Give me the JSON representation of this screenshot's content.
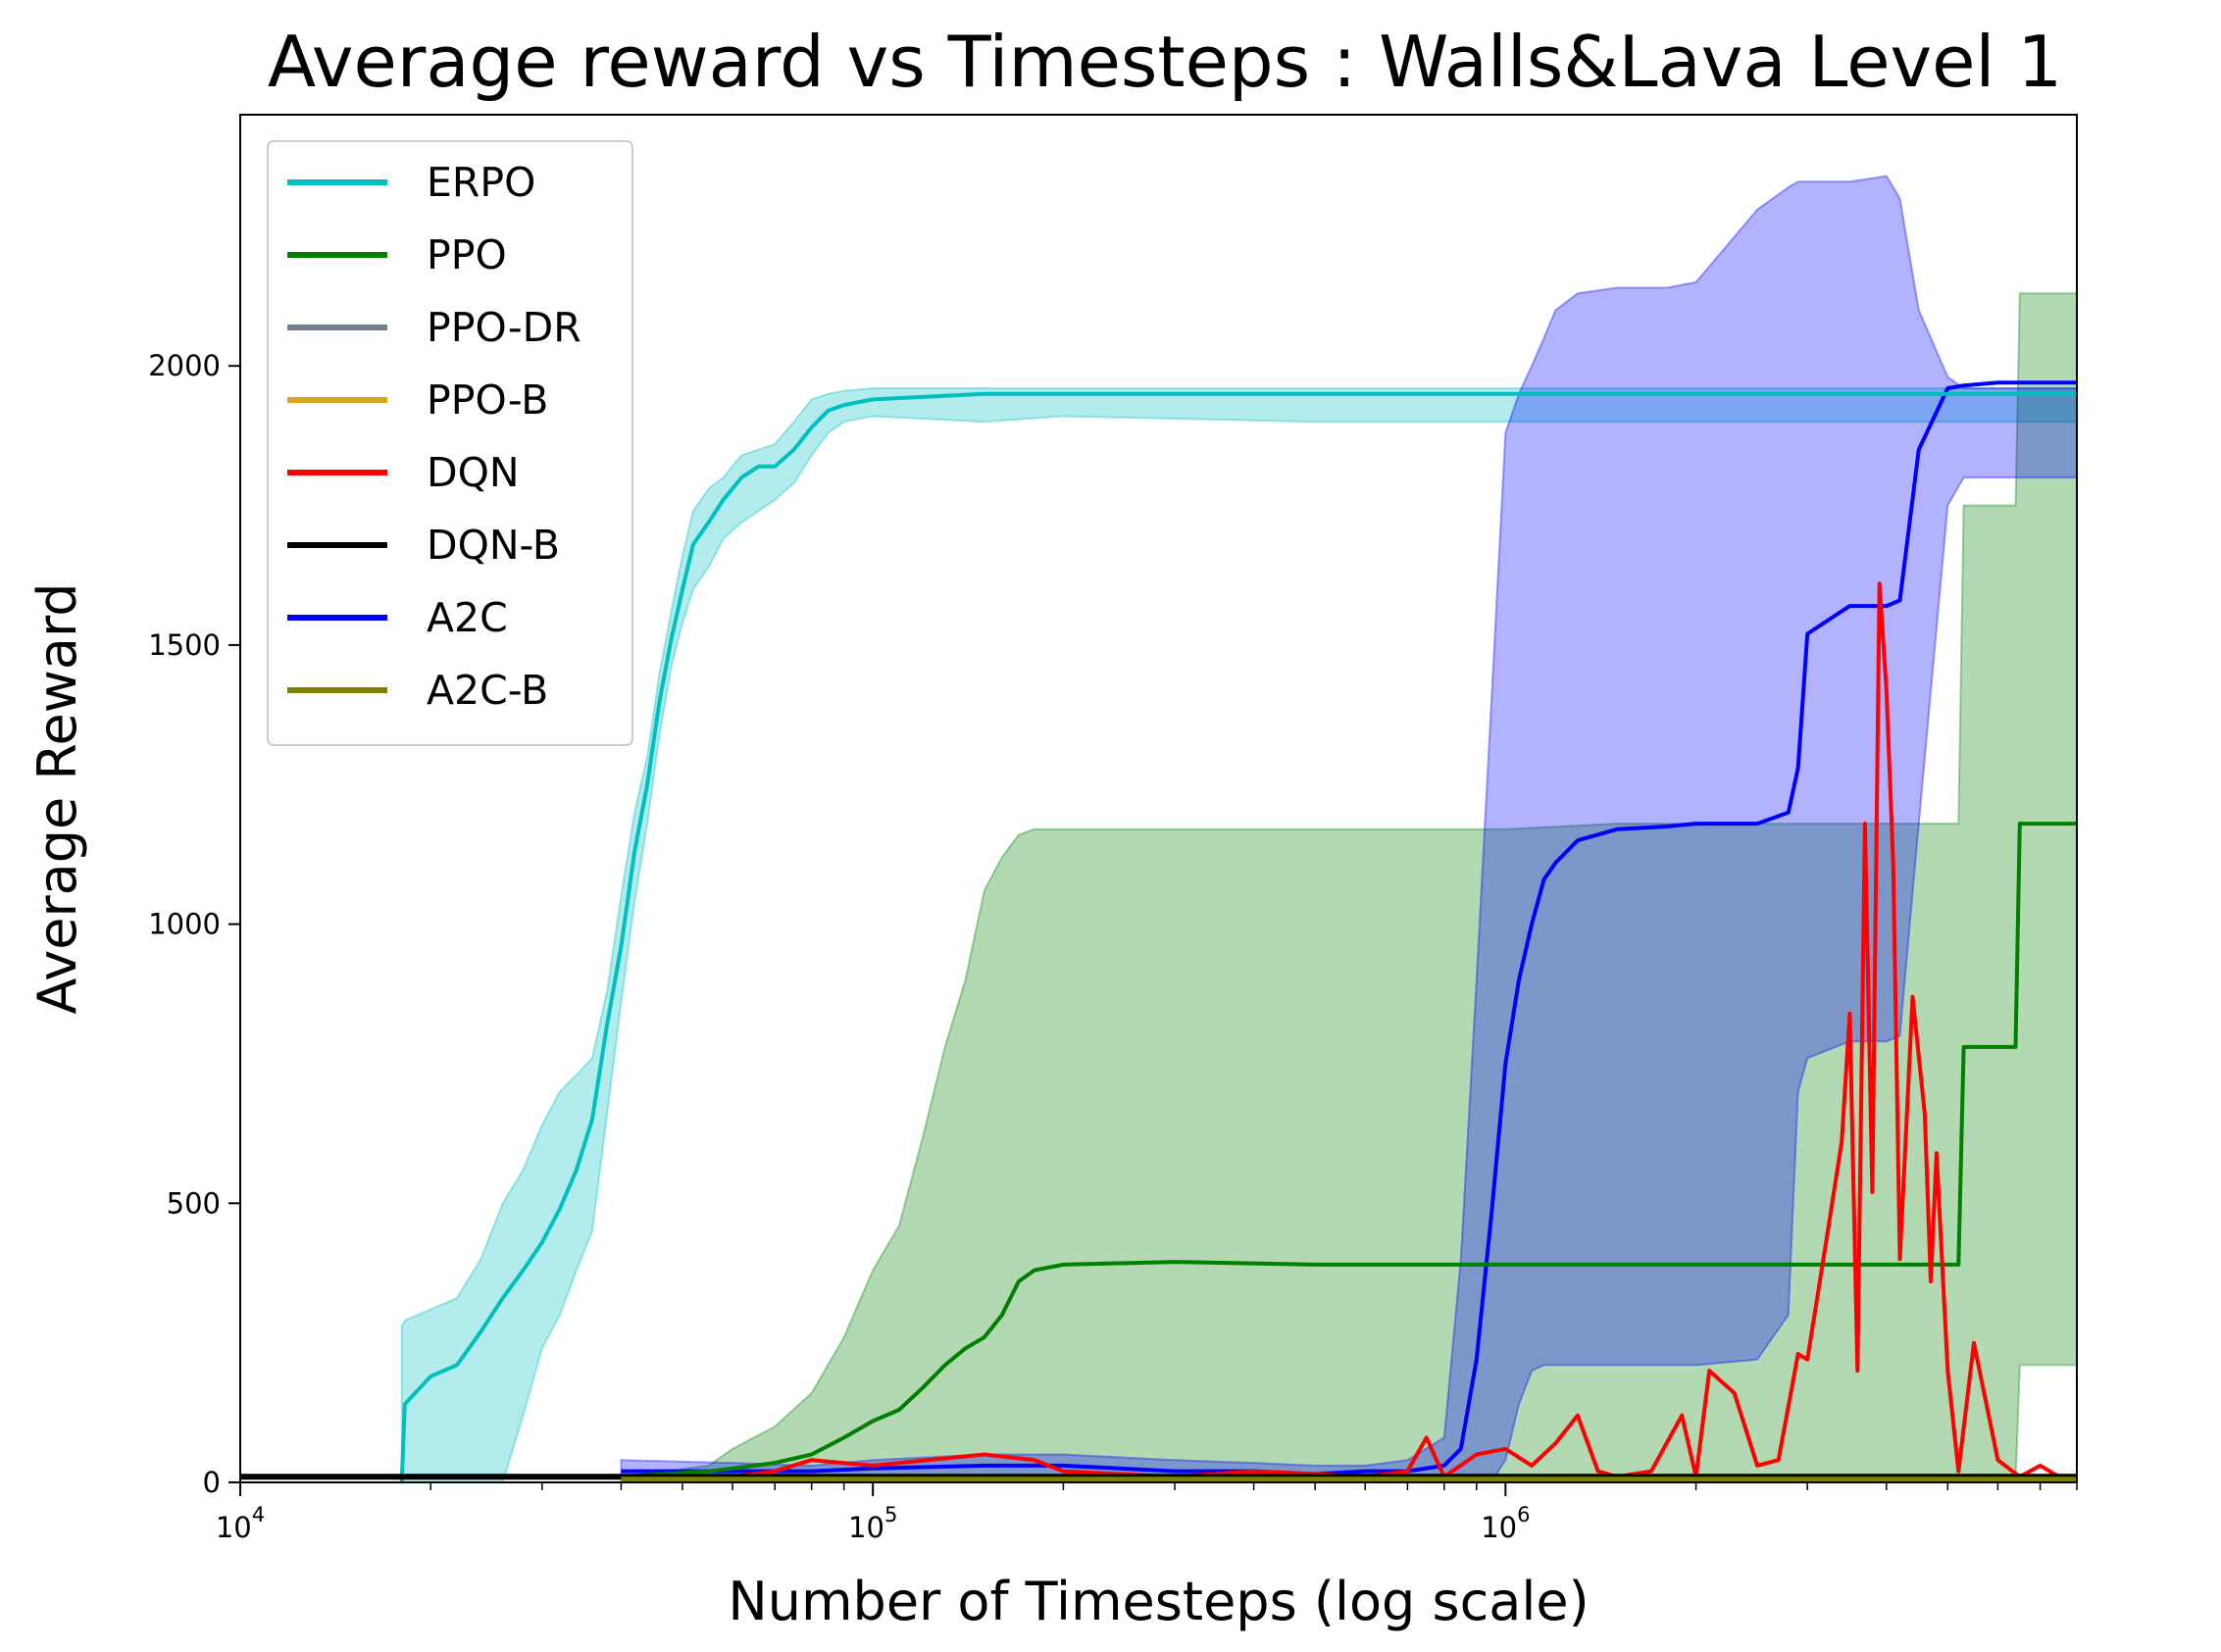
{
  "chart_data": {
    "type": "line",
    "title": "Average reward vs Timesteps : Walls&Lava Level 1",
    "xlabel": "Number of Timesteps (log scale)",
    "ylabel": "Average Reward",
    "xscale": "log",
    "xlim": [
      10000,
      8000000
    ],
    "ylim": [
      0,
      2450
    ],
    "yticks": [
      0,
      500,
      1000,
      1500,
      2000
    ],
    "ytick_labels": [
      "0",
      "500",
      "1000",
      "1500",
      "2000"
    ],
    "xticks": [
      10000,
      100000,
      1000000
    ],
    "xtick_labels": [
      {
        "base": "10",
        "exp": "4"
      },
      {
        "base": "10",
        "exp": "5"
      },
      {
        "base": "10",
        "exp": "6"
      }
    ],
    "grid": false,
    "legend_position": "upper-left",
    "series": [
      {
        "name": "ERPO",
        "color": "#00bfbf",
        "x": [
          18000,
          18200,
          20000,
          22000,
          24000,
          26000,
          28000,
          30000,
          32000,
          34000,
          36000,
          38000,
          40000,
          42000,
          44000,
          46000,
          48000,
          50000,
          52000,
          55000,
          58000,
          62000,
          66000,
          70000,
          75000,
          80000,
          85000,
          90000,
          100000,
          150000,
          200000,
          500000,
          1000000,
          2000000,
          3000000,
          5000000,
          8000000
        ],
        "y": [
          0,
          140,
          190,
          210,
          270,
          330,
          380,
          430,
          490,
          560,
          650,
          820,
          960,
          1130,
          1250,
          1400,
          1510,
          1600,
          1680,
          1720,
          1760,
          1800,
          1820,
          1820,
          1850,
          1890,
          1920,
          1930,
          1940,
          1950,
          1950,
          1950,
          1950,
          1950,
          1950,
          1950,
          1950
        ],
        "band_upper": [
          280,
          290,
          310,
          330,
          400,
          500,
          560,
          640,
          700,
          730,
          760,
          880,
          1050,
          1200,
          1300,
          1450,
          1560,
          1660,
          1740,
          1780,
          1800,
          1840,
          1850,
          1860,
          1900,
          1940,
          1950,
          1955,
          1960,
          1960,
          1960,
          1960,
          1960,
          1960,
          1960,
          1960,
          1960
        ],
        "band_lower": [
          0,
          0,
          0,
          0,
          0,
          0,
          120,
          240,
          300,
          380,
          450,
          660,
          860,
          1040,
          1180,
          1340,
          1460,
          1540,
          1600,
          1640,
          1690,
          1720,
          1740,
          1760,
          1790,
          1840,
          1880,
          1900,
          1910,
          1900,
          1910,
          1900,
          1900,
          1900,
          1900,
          1900,
          1900
        ]
      },
      {
        "name": "PPO",
        "color": "#008000",
        "x": [
          40000,
          55000,
          60000,
          70000,
          80000,
          90000,
          100000,
          110000,
          120000,
          130000,
          140000,
          150000,
          160000,
          170000,
          180000,
          200000,
          300000,
          500000,
          1000000,
          1500000,
          2000000,
          3000000,
          4000000,
          5200000,
          5300000,
          6000000,
          6400000,
          6500000,
          8000000
        ],
        "y": [
          10,
          20,
          25,
          35,
          50,
          80,
          110,
          130,
          170,
          210,
          240,
          260,
          300,
          360,
          380,
          390,
          395,
          390,
          390,
          390,
          390,
          390,
          390,
          390,
          780,
          780,
          780,
          1180,
          1180
        ],
        "band_upper": [
          10,
          30,
          60,
          100,
          160,
          260,
          380,
          460,
          620,
          780,
          900,
          1060,
          1120,
          1160,
          1170,
          1170,
          1170,
          1170,
          1170,
          1180,
          1180,
          1180,
          1180,
          1180,
          1750,
          1750,
          1750,
          2130,
          2130
        ],
        "band_lower": [
          0,
          0,
          0,
          0,
          0,
          0,
          0,
          0,
          0,
          0,
          0,
          0,
          0,
          0,
          0,
          0,
          0,
          0,
          0,
          0,
          0,
          0,
          0,
          0,
          0,
          0,
          0,
          210,
          210
        ]
      },
      {
        "name": "PPO-DR",
        "color": "#708090",
        "x": [
          10000,
          8000000
        ],
        "y": [
          10,
          10
        ]
      },
      {
        "name": "PPO-B",
        "color": "#daa520",
        "x": [
          10000,
          8000000
        ],
        "y": [
          10,
          10
        ]
      },
      {
        "name": "DQN",
        "color": "#ff0000",
        "x": [
          60000,
          70000,
          80000,
          100000,
          150000,
          180000,
          200000,
          300000,
          400000,
          500000,
          600000,
          700000,
          750000,
          800000,
          900000,
          1000000,
          1100000,
          1200000,
          1300000,
          1400000,
          1500000,
          1700000,
          1900000,
          2000000,
          2100000,
          2300000,
          2500000,
          2700000,
          2900000,
          3000000,
          3200000,
          3400000,
          3500000,
          3600000,
          3700000,
          3800000,
          3900000,
          4000000,
          4100000,
          4200000,
          4400000,
          4600000,
          4700000,
          4800000,
          5000000,
          5200000,
          5500000,
          6000000,
          6500000,
          7000000,
          7500000,
          8000000
        ],
        "y": [
          10,
          20,
          40,
          30,
          50,
          40,
          20,
          10,
          20,
          15,
          10,
          20,
          80,
          10,
          50,
          60,
          30,
          70,
          120,
          20,
          10,
          20,
          120,
          10,
          200,
          160,
          30,
          40,
          230,
          220,
          420,
          610,
          840,
          200,
          1180,
          520,
          1610,
          1420,
          1110,
          400,
          870,
          660,
          360,
          590,
          200,
          20,
          250,
          40,
          10,
          30,
          10,
          10
        ]
      },
      {
        "name": "DQN-B",
        "color": "#000000",
        "x": [
          10000,
          8000000
        ],
        "y": [
          10,
          10
        ]
      },
      {
        "name": "A2C",
        "color": "#0000ff",
        "x": [
          40000,
          60000,
          80000,
          100000,
          150000,
          200000,
          300000,
          400000,
          500000,
          600000,
          700000,
          800000,
          850000,
          900000,
          950000,
          1000000,
          1050000,
          1100000,
          1150000,
          1200000,
          1300000,
          1500000,
          1800000,
          2000000,
          2500000,
          2800000,
          2900000,
          3000000,
          3500000,
          4000000,
          4200000,
          4500000,
          5000000,
          5300000,
          6000000,
          8000000
        ],
        "y": [
          20,
          20,
          20,
          25,
          30,
          30,
          20,
          20,
          15,
          20,
          20,
          30,
          60,
          220,
          480,
          750,
          900,
          1000,
          1080,
          1110,
          1150,
          1170,
          1175,
          1180,
          1180,
          1200,
          1280,
          1520,
          1570,
          1570,
          1580,
          1850,
          1960,
          1965,
          1970,
          1970
        ],
        "band_upper": [
          40,
          35,
          30,
          40,
          50,
          50,
          40,
          35,
          30,
          30,
          40,
          80,
          400,
          900,
          1400,
          1880,
          1950,
          2000,
          2050,
          2100,
          2130,
          2140,
          2140,
          2150,
          2280,
          2320,
          2330,
          2330,
          2330,
          2340,
          2300,
          2100,
          1980,
          1960,
          1960,
          1960
        ],
        "band_lower": [
          10,
          10,
          10,
          10,
          10,
          10,
          10,
          10,
          0,
          0,
          0,
          0,
          0,
          0,
          0,
          40,
          140,
          200,
          210,
          210,
          210,
          210,
          210,
          210,
          220,
          300,
          700,
          760,
          790,
          790,
          800,
          1180,
          1750,
          1800,
          1800,
          1800
        ]
      },
      {
        "name": "A2C-B",
        "color": "#808000",
        "x": [
          40000,
          8000000
        ],
        "y": [
          5,
          5
        ]
      }
    ]
  }
}
